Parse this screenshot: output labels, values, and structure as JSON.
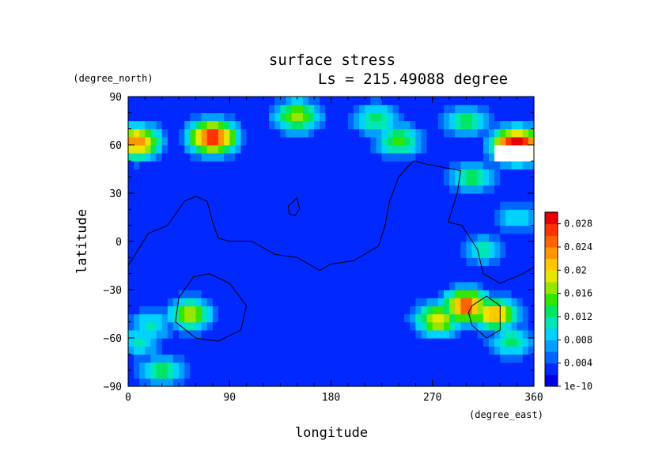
{
  "chart_data": {
    "type": "heatmap",
    "title": "surface stress",
    "subtitle": "Ls = 215.49088 degree",
    "xlabel": "longitude",
    "ylabel": "latitude",
    "x_unit": "(degree_east)",
    "y_unit": "(degree_north)",
    "xlim": [
      0,
      360
    ],
    "ylim": [
      -90,
      90
    ],
    "xticks": [
      0,
      90,
      180,
      270,
      360
    ],
    "yticks": [
      90,
      60,
      30,
      0,
      -30,
      -60,
      -90
    ],
    "x_tick_labels": [
      "0",
      "90",
      "180",
      "270",
      "360"
    ],
    "y_tick_labels": [
      "90",
      "60",
      "30",
      "0",
      "−30",
      "−60",
      "−90"
    ],
    "colorbar": {
      "labels": [
        "0.028",
        "0.024",
        "0.02",
        "0.016",
        "0.012",
        "0.008",
        "0.004",
        "1e-10"
      ],
      "levels": [
        0.028,
        0.024,
        0.02,
        0.016,
        0.012,
        0.008,
        0.004,
        1e-10
      ],
      "colors": [
        "#0000e6",
        "#0028ff",
        "#0064ff",
        "#00a0ff",
        "#00d2ff",
        "#00e6b4",
        "#00e664",
        "#32e600",
        "#96e600",
        "#e6e600",
        "#ffc800",
        "#ff9600",
        "#ff6400",
        "#ff3200",
        "#e60000"
      ]
    },
    "background_value": 0.003,
    "features": [
      {
        "lon": 8,
        "lat": 62,
        "value": 0.022
      },
      {
        "lon": 75,
        "lat": 65,
        "value": 0.026
      },
      {
        "lon": 150,
        "lat": 78,
        "value": 0.016
      },
      {
        "lon": 220,
        "lat": 76,
        "value": 0.012
      },
      {
        "lon": 300,
        "lat": 75,
        "value": 0.012
      },
      {
        "lon": 345,
        "lat": 60,
        "value": 0.03
      },
      {
        "lon": 240,
        "lat": 63,
        "value": 0.014
      },
      {
        "lon": 305,
        "lat": 40,
        "value": 0.012
      },
      {
        "lon": 55,
        "lat": -45,
        "value": 0.016
      },
      {
        "lon": 20,
        "lat": -52,
        "value": 0.01
      },
      {
        "lon": 300,
        "lat": -40,
        "value": 0.024
      },
      {
        "lon": 275,
        "lat": -48,
        "value": 0.018
      },
      {
        "lon": 325,
        "lat": -45,
        "value": 0.02
      },
      {
        "lon": 340,
        "lat": -62,
        "value": 0.012
      },
      {
        "lon": 30,
        "lat": -80,
        "value": 0.012
      },
      {
        "lon": 10,
        "lat": -62,
        "value": 0.01
      },
      {
        "lon": 315,
        "lat": -5,
        "value": 0.01
      },
      {
        "lon": 345,
        "lat": 15,
        "value": 0.009
      }
    ],
    "missing_region": {
      "lon": [
        325,
        360
      ],
      "lat": [
        50,
        62
      ]
    },
    "contours": [
      [
        [
          0,
          -15
        ],
        [
          18,
          5
        ],
        [
          35,
          10
        ],
        [
          50,
          25
        ],
        [
          60,
          28
        ],
        [
          70,
          25
        ],
        [
          75,
          12
        ],
        [
          80,
          2
        ],
        [
          90,
          0
        ],
        [
          110,
          0
        ],
        [
          130,
          -8
        ],
        [
          150,
          -10
        ],
        [
          170,
          -18
        ],
        [
          180,
          -14
        ],
        [
          200,
          -12
        ],
        [
          222,
          -3
        ],
        [
          228,
          10
        ],
        [
          232,
          25
        ],
        [
          240,
          40
        ],
        [
          253,
          50
        ],
        [
          265,
          48
        ],
        [
          280,
          46
        ],
        [
          295,
          44
        ],
        [
          292,
          30
        ],
        [
          284,
          12
        ],
        [
          296,
          10
        ],
        [
          310,
          -5
        ],
        [
          315,
          -20
        ],
        [
          330,
          -26
        ],
        [
          350,
          -20
        ],
        [
          360,
          -16
        ]
      ],
      [
        [
          45,
          -35
        ],
        [
          58,
          -22
        ],
        [
          72,
          -20
        ],
        [
          90,
          -26
        ],
        [
          105,
          -40
        ],
        [
          100,
          -55
        ],
        [
          80,
          -62
        ],
        [
          60,
          -60
        ],
        [
          42,
          -50
        ],
        [
          45,
          -35
        ]
      ],
      [
        [
          142,
          22
        ],
        [
          150,
          27
        ],
        [
          152,
          20
        ],
        [
          148,
          16
        ],
        [
          143,
          17
        ],
        [
          142,
          22
        ]
      ],
      [
        [
          305,
          -40
        ],
        [
          318,
          -34
        ],
        [
          330,
          -40
        ],
        [
          330,
          -55
        ],
        [
          318,
          -60
        ],
        [
          305,
          -52
        ],
        [
          302,
          -44
        ],
        [
          305,
          -40
        ]
      ]
    ]
  }
}
